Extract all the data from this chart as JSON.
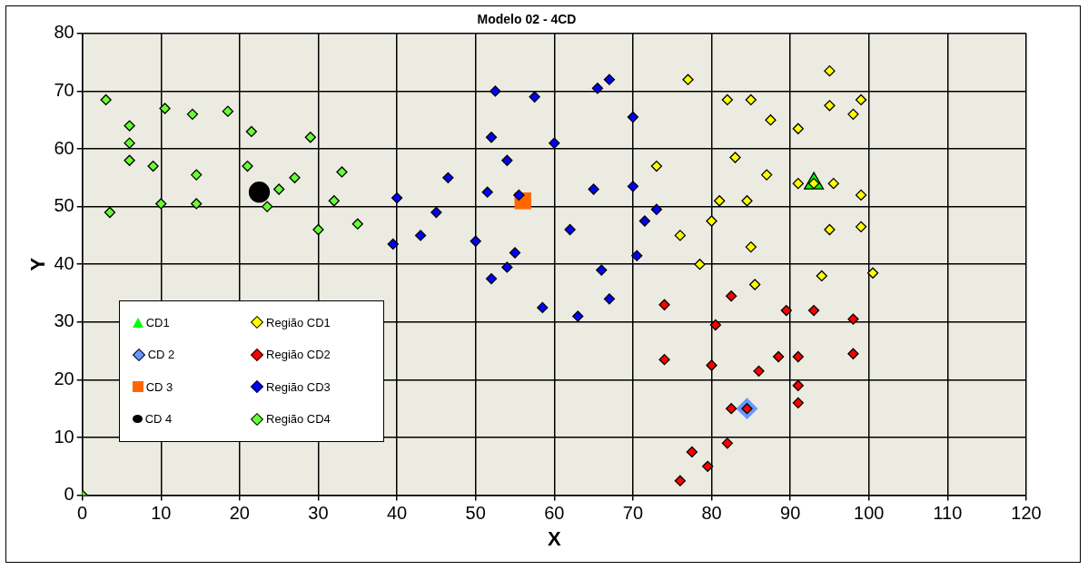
{
  "chart_data": {
    "type": "scatter",
    "title": "Modelo 02 - 4CD",
    "xlabel": "X",
    "ylabel": "Y",
    "xlim": [
      0,
      120
    ],
    "ylim": [
      0,
      80
    ],
    "xticks": [
      0,
      10,
      20,
      30,
      40,
      50,
      60,
      70,
      80,
      90,
      100,
      110,
      120
    ],
    "yticks": [
      0,
      10,
      20,
      30,
      40,
      50,
      60,
      70,
      80
    ],
    "grid": true,
    "legend": "bottom left",
    "series": [
      {
        "name": "CD1",
        "color": "#00ff00",
        "marker": "triangle",
        "x": [
          93
        ],
        "values": [
          54
        ]
      },
      {
        "name": "CD 2",
        "color": "#6699ff",
        "marker": "diamond",
        "x": [
          84.5
        ],
        "values": [
          15
        ]
      },
      {
        "name": "CD 3",
        "color": "#ff6600",
        "marker": "square",
        "x": [
          56
        ],
        "values": [
          51
        ]
      },
      {
        "name": "CD 4",
        "color": "#000000",
        "marker": "circle",
        "x": [
          22.5
        ],
        "values": [
          52.5
        ]
      },
      {
        "name": "Região CD1",
        "color": "#ffff00",
        "marker": "diamond",
        "x": [
          73,
          76,
          77,
          78.5,
          80,
          81,
          82,
          83,
          84.5,
          85,
          85,
          85.5,
          87,
          87.5,
          91,
          91,
          93,
          94,
          95,
          95,
          95,
          95.5,
          98,
          99,
          99,
          99,
          100.5
        ],
        "values": [
          57,
          45,
          72,
          40,
          47.5,
          51,
          68.5,
          58.5,
          51,
          68.5,
          43,
          36.5,
          55.5,
          65,
          54,
          63.5,
          54,
          38,
          73.5,
          67.5,
          46,
          54,
          66,
          68.5,
          52,
          46.5,
          38.5
        ]
      },
      {
        "name": "Região CD2",
        "color": "#ff0000",
        "marker": "diamond",
        "x": [
          74,
          74,
          76,
          77.5,
          79.5,
          80,
          80.5,
          82,
          82.5,
          82.5,
          84.5,
          86,
          88.5,
          89.5,
          91,
          91,
          91,
          93,
          98,
          98
        ],
        "values": [
          33,
          23.5,
          2.5,
          7.5,
          5,
          22.5,
          29.5,
          9,
          34.5,
          15,
          15,
          21.5,
          24,
          32,
          24,
          19,
          16,
          32,
          30.5,
          24.5
        ]
      },
      {
        "name": "Região CD3",
        "color": "#0000ff",
        "marker": "diamond",
        "x": [
          39.5,
          40,
          43,
          45,
          46.5,
          50,
          51.5,
          52,
          52,
          52.5,
          54,
          54,
          55,
          55.5,
          57.5,
          58.5,
          60,
          62,
          63,
          65,
          65.5,
          66,
          67,
          67,
          70,
          70,
          70.5,
          71.5,
          73
        ],
        "values": [
          43.5,
          51.5,
          45,
          49,
          55,
          44,
          52.5,
          62,
          37.5,
          70,
          39.5,
          58,
          42,
          52,
          69,
          32.5,
          61,
          46,
          31,
          53,
          70.5,
          39,
          72,
          34,
          65.5,
          53.5,
          41.5,
          47.5,
          49.5
        ]
      },
      {
        "name": "Região CD4",
        "color": "#66ff33",
        "marker": "diamond",
        "x": [
          0,
          3,
          3.5,
          6,
          6,
          6,
          9,
          10,
          10.5,
          14,
          14.5,
          14.5,
          18.5,
          21,
          21.5,
          23.5,
          25,
          27,
          29,
          30,
          32,
          33,
          35
        ],
        "values": [
          0,
          68.5,
          49,
          64,
          61,
          58,
          57,
          50.5,
          67,
          66,
          55.5,
          50.5,
          66.5,
          57,
          63,
          50,
          53,
          55,
          62,
          46,
          51,
          56,
          47
        ]
      }
    ]
  }
}
